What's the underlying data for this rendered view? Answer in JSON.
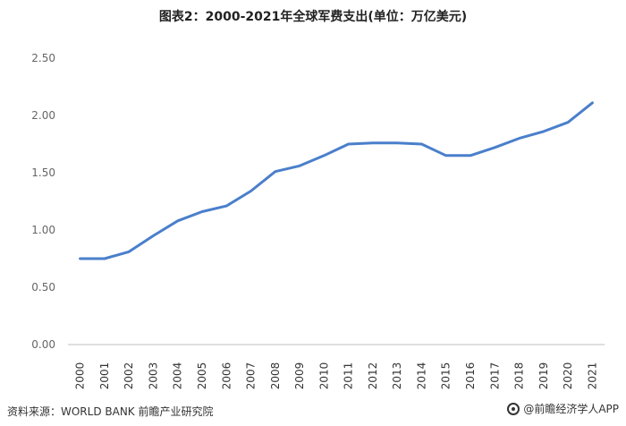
{
  "header": {
    "title": "图表2：2000-2021年全球军费支出(单位：万亿美元)"
  },
  "footer": {
    "source": "资料来源：WORLD BANK 前瞻产业研究院",
    "brand": "@前瞻经济学人APP"
  },
  "chart_data": {
    "type": "line",
    "title": "图表2：2000-2021年全球军费支出(单位：万亿美元)",
    "xlabel": "",
    "ylabel": "",
    "categories": [
      "2000",
      "2001",
      "2002",
      "2003",
      "2004",
      "2005",
      "2006",
      "2007",
      "2008",
      "2009",
      "2010",
      "2011",
      "2012",
      "2013",
      "2014",
      "2015",
      "2016",
      "2017",
      "2018",
      "2019",
      "2020",
      "2021"
    ],
    "series": [
      {
        "values": [
          0.75,
          0.75,
          0.81,
          0.95,
          1.08,
          1.16,
          1.21,
          1.34,
          1.51,
          1.56,
          1.65,
          1.75,
          1.76,
          1.76,
          1.75,
          1.65,
          1.65,
          1.72,
          1.8,
          1.86,
          1.94,
          2.11
        ],
        "color": "#4a7fcb"
      }
    ],
    "y_ticks": [
      "0.00",
      "0.50",
      "1.00",
      "1.50",
      "2.00",
      "2.50"
    ],
    "ylim": [
      0,
      2.5
    ],
    "grid": false,
    "legend": "none"
  }
}
